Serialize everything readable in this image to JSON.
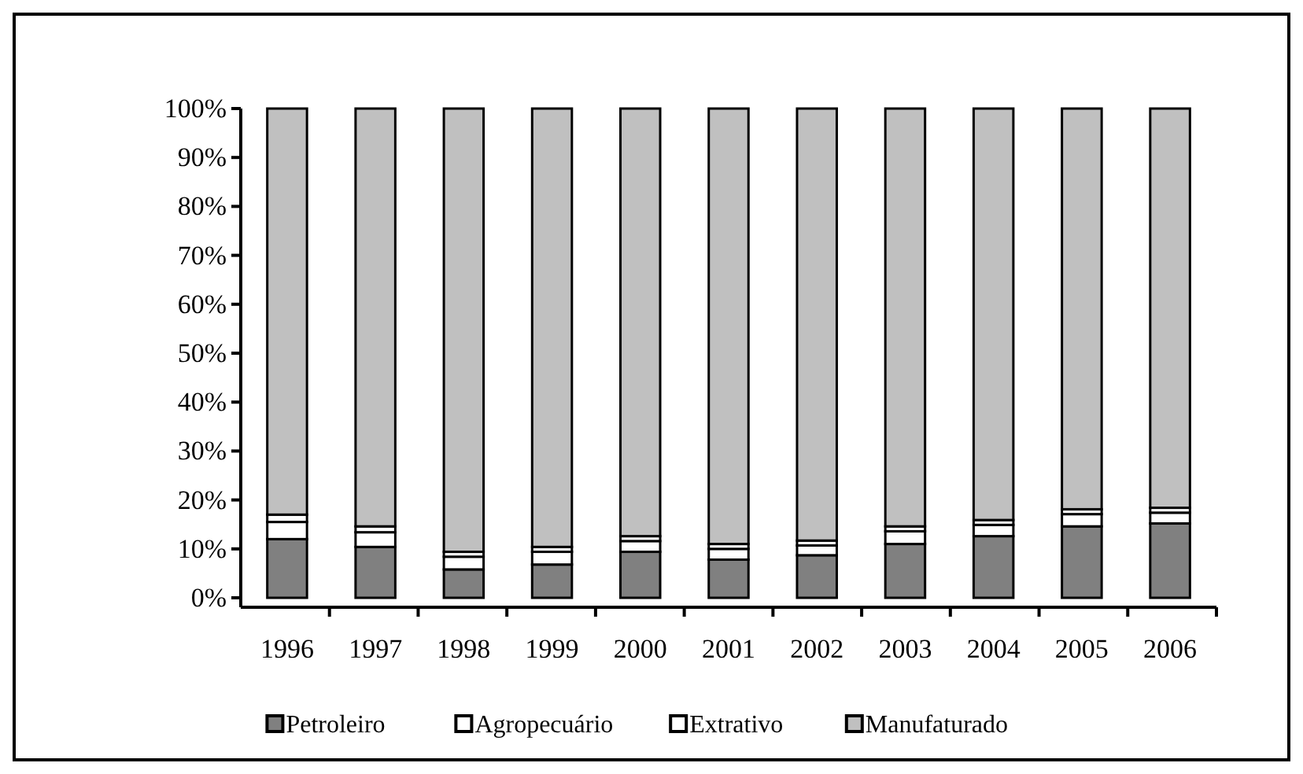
{
  "chart_data": {
    "type": "bar",
    "stacked": true,
    "categories": [
      "1996",
      "1997",
      "1998",
      "1999",
      "2000",
      "2001",
      "2002",
      "2003",
      "2004",
      "2005",
      "2006"
    ],
    "series": [
      {
        "name": "Petroleiro",
        "color": "#808080",
        "values": [
          12,
          10.4,
          5.8,
          6.8,
          9.4,
          7.8,
          8.7,
          11,
          12.6,
          14.6,
          15.2
        ]
      },
      {
        "name": "Agropecuário",
        "color": "#ffffff",
        "values": [
          3.5,
          3,
          2.6,
          2.6,
          2.2,
          2.2,
          2,
          2.6,
          2.3,
          2.5,
          2.2
        ]
      },
      {
        "name": "Extrativo",
        "color": "#ffffff",
        "values": [
          1.5,
          1.2,
          1,
          1,
          1,
          1,
          1,
          1,
          1,
          1,
          1
        ]
      },
      {
        "name": "Manufaturado",
        "color": "#c0c0c0",
        "values": [
          83,
          85.4,
          90.6,
          89.6,
          87.4,
          89,
          88.3,
          85.4,
          84.1,
          81.9,
          81.6
        ]
      }
    ],
    "ylim": [
      0,
      100
    ],
    "yticks": [
      {
        "value": 0,
        "label": "0%"
      },
      {
        "value": 10,
        "label": "10%"
      },
      {
        "value": 20,
        "label": "20%"
      },
      {
        "value": 30,
        "label": "30%"
      },
      {
        "value": 40,
        "label": "40%"
      },
      {
        "value": 50,
        "label": "50%"
      },
      {
        "value": 60,
        "label": "60%"
      },
      {
        "value": 70,
        "label": "70%"
      },
      {
        "value": 80,
        "label": "80%"
      },
      {
        "value": 90,
        "label": "90%"
      },
      {
        "value": 100,
        "label": "100%"
      }
    ],
    "legend": "bottom"
  }
}
